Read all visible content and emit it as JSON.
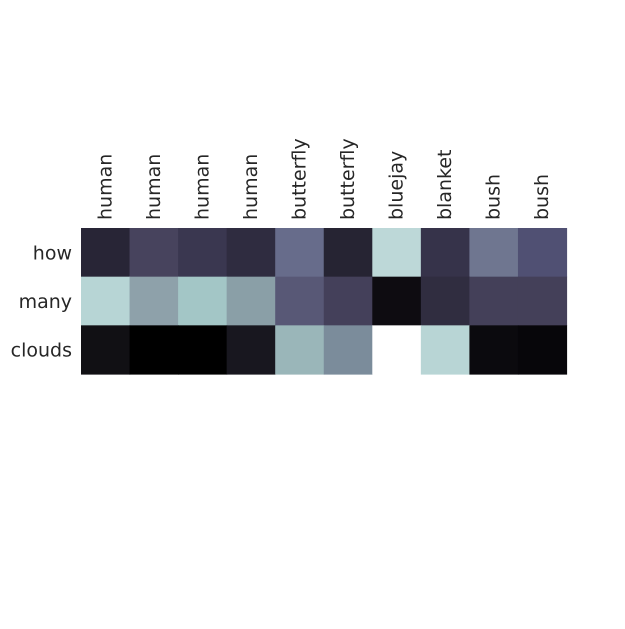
{
  "chart_data": {
    "type": "heatmap",
    "x_labels": [
      "human",
      "human",
      "human",
      "human",
      "butterfly",
      "butterfly",
      "bluejay",
      "blanket",
      "bush",
      "bush"
    ],
    "y_labels": [
      "how",
      "many",
      "clouds"
    ],
    "cell_colors": [
      [
        "#282536",
        "#47435d",
        "#3a3750",
        "#2f2c40",
        "#676c8b",
        "#262433",
        "#bdd8d8",
        "#36334a",
        "#6f7690",
        "#505073"
      ],
      [
        "#b7d5d5",
        "#8ea1aa",
        "#a3c6c6",
        "#8a9fa7",
        "#585876",
        "#44405a",
        "#0e0c11",
        "#302d40",
        "#444059",
        "#444059"
      ],
      [
        "#111014",
        "#000000",
        "#000000",
        "#18171f",
        "#9ab6b9",
        "#7b8c9b",
        "#ffffff",
        "#b8d5d5",
        "#0b0a0e",
        "#07060a"
      ]
    ],
    "colormap": "bone",
    "colorbar": false,
    "grid": false,
    "x_tick_rotation_degrees": 90,
    "x_tick_position": "top"
  }
}
